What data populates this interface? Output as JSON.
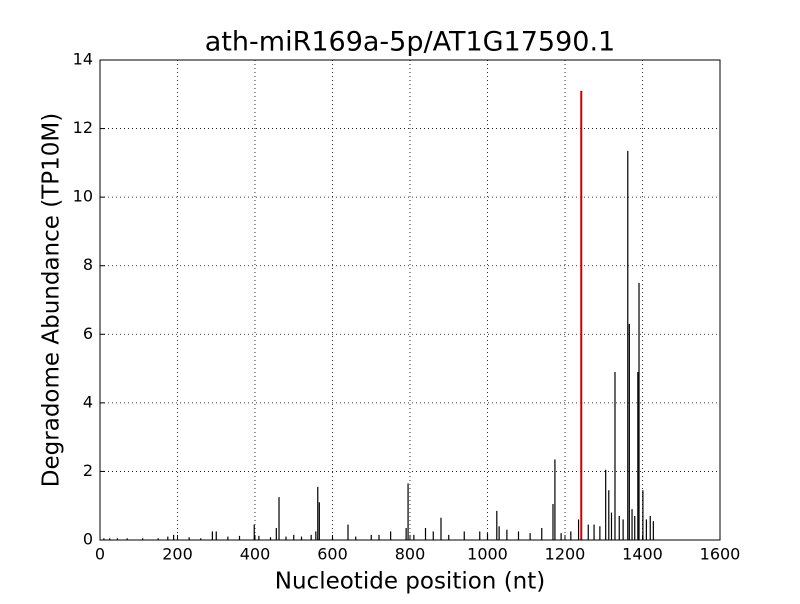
{
  "chart_data": {
    "type": "stem",
    "title": "ath-miR169a-5p/AT1G17590.1",
    "x_label": "Nucleotide position (nt)",
    "y_label": "Degradome Abundance (TP10M)",
    "xlim": [
      0,
      1600
    ],
    "xticks": [
      0,
      200,
      400,
      600,
      800,
      1000,
      1200,
      1400,
      1600
    ],
    "ylim": [
      0,
      14
    ],
    "yticks": [
      0,
      2,
      4,
      6,
      8,
      10,
      12,
      14
    ],
    "grid": true,
    "series": [
      {
        "color": "#000000",
        "x": [
          10,
          25,
          45,
          70,
          110,
          150,
          175,
          190,
          230,
          260,
          290,
          300,
          330,
          360,
          398,
          410,
          440,
          455,
          462,
          480,
          500,
          520,
          545,
          557,
          562,
          566,
          600,
          640,
          660,
          700,
          720,
          750,
          790,
          795,
          810,
          840,
          860,
          880,
          900,
          940,
          980,
          1000,
          1024,
          1030,
          1050,
          1080,
          1110,
          1140,
          1169,
          1174,
          1190,
          1215,
          1235,
          1260,
          1275,
          1290,
          1305,
          1313,
          1320,
          1329,
          1340,
          1350,
          1362,
          1366,
          1373,
          1380,
          1388,
          1391,
          1401,
          1410,
          1420,
          1428
        ],
        "values": [
          0.05,
          0.05,
          0.05,
          0.05,
          0.05,
          0.05,
          0.1,
          0.15,
          0.08,
          0.05,
          0.25,
          0.25,
          0.1,
          0.12,
          0.45,
          0.12,
          0.08,
          0.35,
          1.25,
          0.1,
          0.15,
          0.1,
          0.15,
          0.25,
          1.55,
          1.1,
          0.1,
          0.45,
          0.1,
          0.15,
          0.15,
          0.25,
          0.35,
          1.65,
          0.15,
          0.35,
          0.25,
          0.65,
          0.15,
          0.25,
          0.25,
          0.2,
          0.85,
          0.4,
          0.3,
          0.25,
          0.2,
          0.35,
          1.05,
          2.35,
          0.2,
          0.25,
          0.6,
          0.45,
          0.45,
          0.4,
          2.05,
          1.45,
          0.8,
          4.9,
          0.7,
          0.6,
          11.35,
          6.3,
          0.9,
          0.7,
          4.9,
          7.5,
          1.45,
          0.6,
          0.7,
          0.55
        ]
      },
      {
        "color": "#cc0000",
        "x": [
          1242
        ],
        "values": [
          13.1
        ]
      }
    ]
  }
}
